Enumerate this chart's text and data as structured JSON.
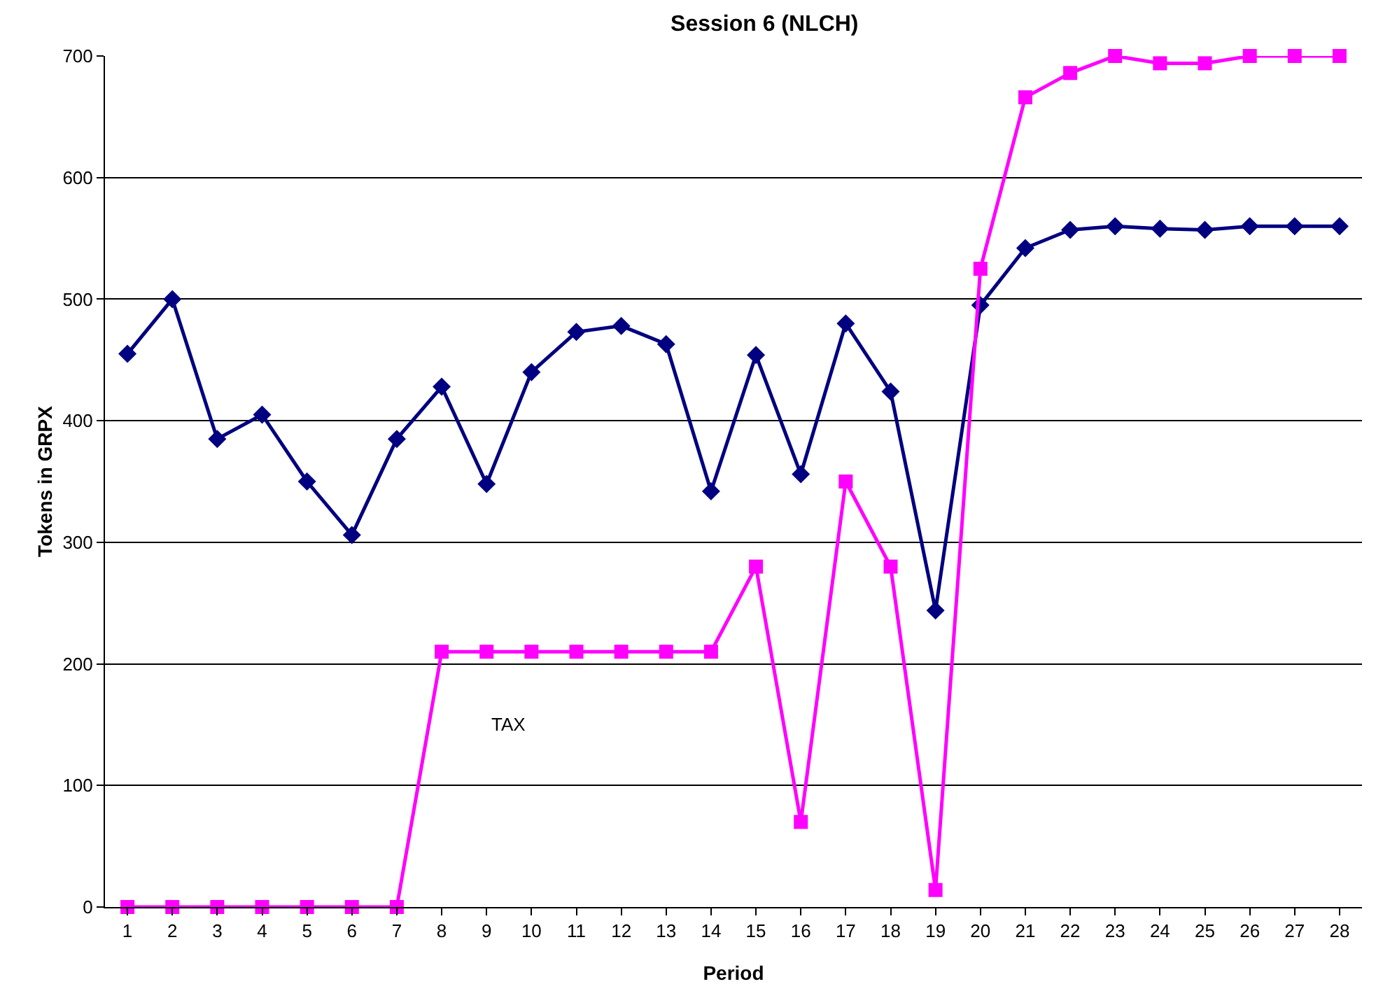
{
  "chart_data": {
    "type": "line",
    "title": "Session 6 (NLCH)",
    "xlabel": "Period",
    "ylabel": "Tokens in GRPX",
    "x": [
      1,
      2,
      3,
      4,
      5,
      6,
      7,
      8,
      9,
      10,
      11,
      12,
      13,
      14,
      15,
      16,
      17,
      18,
      19,
      20,
      21,
      22,
      23,
      24,
      25,
      26,
      27,
      28
    ],
    "xlim": [
      0.5,
      28.5
    ],
    "xticks": [
      1,
      2,
      3,
      4,
      5,
      6,
      7,
      8,
      9,
      10,
      11,
      12,
      13,
      14,
      15,
      16,
      17,
      18,
      19,
      20,
      21,
      22,
      23,
      24,
      25,
      26,
      27,
      28
    ],
    "ylim": [
      0,
      700
    ],
    "yticks": [
      0,
      100,
      200,
      300,
      400,
      500,
      600,
      700
    ],
    "grid": "y",
    "legend": false,
    "series": [
      {
        "color": "#000080",
        "marker": "diamond",
        "values": [
          455,
          500,
          385,
          405,
          350,
          306,
          385,
          428,
          348,
          440,
          473,
          478,
          463,
          342,
          454,
          356,
          480,
          424,
          244,
          495,
          542,
          557,
          560,
          558,
          557,
          560,
          560,
          560
        ]
      },
      {
        "name": "TAX",
        "color": "#ff00ff",
        "marker": "square",
        "values": [
          0,
          0,
          0,
          0,
          0,
          0,
          0,
          210,
          210,
          210,
          210,
          210,
          210,
          210,
          280,
          70,
          350,
          280,
          14,
          525,
          666,
          686,
          700,
          694,
          694,
          700,
          700,
          700
        ]
      }
    ]
  }
}
